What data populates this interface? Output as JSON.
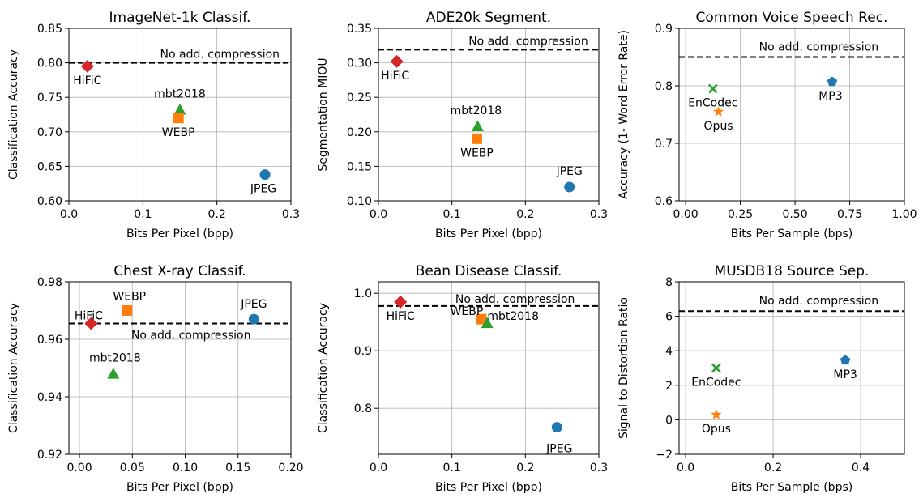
{
  "colors": {
    "blue": "#1f77b4",
    "orange": "#ff7f0e",
    "green": "#2ca02c",
    "red": "#d62728"
  },
  "chart_data": [
    {
      "type": "scatter",
      "title": "ImageNet-1k Classif.",
      "xlabel": "Bits Per Pixel (bpp)",
      "ylabel": "Classification Accuracy",
      "xlim": [
        0.0,
        0.3
      ],
      "ylim": [
        0.6,
        0.85
      ],
      "xticks": [
        0.0,
        0.1,
        0.2,
        0.3
      ],
      "xtick_labels": [
        "0.0",
        "0.1",
        "0.2",
        "0.3"
      ],
      "yticks": [
        0.6,
        0.65,
        0.7,
        0.75,
        0.8,
        0.85
      ],
      "ytick_labels": [
        "0.60",
        "0.65",
        "0.70",
        "0.75",
        "0.80",
        "0.85"
      ],
      "grid": true,
      "reference_line": {
        "value": 0.8,
        "label": "No add. compression"
      },
      "points": [
        {
          "name": "HiFiC",
          "x": 0.025,
          "y": 0.795,
          "marker": "diamond",
          "color": "red"
        },
        {
          "name": "mbt2018",
          "x": 0.15,
          "y": 0.732,
          "marker": "triangle",
          "color": "green"
        },
        {
          "name": "WEBP",
          "x": 0.148,
          "y": 0.72,
          "marker": "square",
          "color": "orange"
        },
        {
          "name": "JPEG",
          "x": 0.265,
          "y": 0.638,
          "marker": "circle",
          "color": "blue"
        }
      ]
    },
    {
      "type": "scatter",
      "title": "ADE20k Segment.",
      "xlabel": "Bits Per Pixel (bpp)",
      "ylabel": "Segmentation MIOU",
      "xlim": [
        0.0,
        0.3
      ],
      "ylim": [
        0.1,
        0.35
      ],
      "xticks": [
        0.0,
        0.1,
        0.2,
        0.3
      ],
      "xtick_labels": [
        "0.0",
        "0.1",
        "0.2",
        "0.3"
      ],
      "yticks": [
        0.1,
        0.15,
        0.2,
        0.25,
        0.3,
        0.35
      ],
      "ytick_labels": [
        "0.10",
        "0.15",
        "0.20",
        "0.25",
        "0.30",
        "0.35"
      ],
      "grid": true,
      "reference_line": {
        "value": 0.319,
        "label": "No add. compression"
      },
      "points": [
        {
          "name": "HiFiC",
          "x": 0.025,
          "y": 0.302,
          "marker": "diamond",
          "color": "red"
        },
        {
          "name": "mbt2018",
          "x": 0.135,
          "y": 0.208,
          "marker": "triangle",
          "color": "green"
        },
        {
          "name": "WEBP",
          "x": 0.134,
          "y": 0.19,
          "marker": "square",
          "color": "orange"
        },
        {
          "name": "JPEG",
          "x": 0.26,
          "y": 0.12,
          "marker": "circle",
          "color": "blue"
        }
      ]
    },
    {
      "type": "scatter",
      "title": "Common Voice Speech Rec.",
      "xlabel": "Bits Per Sample (bps)",
      "ylabel": "Accuracy (1- Word Error Rate)",
      "xlim": [
        -0.03,
        1.0
      ],
      "ylim": [
        0.6,
        0.9
      ],
      "xticks": [
        0.0,
        0.25,
        0.5,
        0.75,
        1.0
      ],
      "xtick_labels": [
        "0.00",
        "0.25",
        "0.50",
        "0.75",
        "1.00"
      ],
      "yticks": [
        0.6,
        0.7,
        0.8,
        0.9
      ],
      "ytick_labels": [
        "0.6",
        "0.7",
        "0.8",
        "0.9"
      ],
      "grid": true,
      "reference_line": {
        "value": 0.85,
        "label": "No add. compression"
      },
      "points": [
        {
          "name": "EnCodec",
          "x": 0.125,
          "y": 0.795,
          "marker": "x",
          "color": "green"
        },
        {
          "name": "Opus",
          "x": 0.15,
          "y": 0.755,
          "marker": "star",
          "color": "orange"
        },
        {
          "name": "MP3",
          "x": 0.67,
          "y": 0.807,
          "marker": "pentagon",
          "color": "blue"
        }
      ]
    },
    {
      "type": "scatter",
      "title": "Chest X-ray Classif.",
      "xlabel": "Bits Per Pixel (bpp)",
      "ylabel": "Classification Accuracy",
      "xlim": [
        -0.01,
        0.2
      ],
      "ylim": [
        0.92,
        0.98
      ],
      "xticks": [
        0.0,
        0.05,
        0.1,
        0.15,
        0.2
      ],
      "xtick_labels": [
        "0.00",
        "0.05",
        "0.10",
        "0.15",
        "0.20"
      ],
      "yticks": [
        0.92,
        0.94,
        0.96,
        0.98
      ],
      "ytick_labels": [
        "0.92",
        "0.94",
        "0.96",
        "0.98"
      ],
      "grid": true,
      "reference_line": {
        "value": 0.9655,
        "label": "No add. compression"
      },
      "points": [
        {
          "name": "HiFiC",
          "x": 0.011,
          "y": 0.9655,
          "marker": "diamond",
          "color": "red"
        },
        {
          "name": "WEBP",
          "x": 0.045,
          "y": 0.97,
          "marker": "square",
          "color": "orange"
        },
        {
          "name": "JPEG",
          "x": 0.165,
          "y": 0.967,
          "marker": "circle",
          "color": "blue"
        },
        {
          "name": "mbt2018",
          "x": 0.032,
          "y": 0.948,
          "marker": "triangle",
          "color": "green"
        }
      ]
    },
    {
      "type": "scatter",
      "title": "Bean Disease Classif.",
      "xlabel": "Bits Per Pixel (bpp)",
      "ylabel": "Classification Accuracy",
      "xlim": [
        0.0,
        0.3
      ],
      "ylim": [
        0.72,
        1.02
      ],
      "xticks": [
        0.0,
        0.1,
        0.2,
        0.3
      ],
      "xtick_labels": [
        "0.0",
        "0.1",
        "0.2",
        "0.3"
      ],
      "yticks": [
        0.8,
        0.9,
        1.0
      ],
      "ytick_labels": [
        "0.8",
        "0.9",
        "1.0"
      ],
      "grid": true,
      "reference_line": {
        "value": 0.978,
        "label": "No add. compression"
      },
      "points": [
        {
          "name": "HiFiC",
          "x": 0.03,
          "y": 0.985,
          "marker": "diamond",
          "color": "red"
        },
        {
          "name": "WEBP",
          "x": 0.14,
          "y": 0.955,
          "marker": "square",
          "color": "orange"
        },
        {
          "name": "mbt2018",
          "x": 0.148,
          "y": 0.948,
          "marker": "triangle",
          "color": "green"
        },
        {
          "name": "JPEG",
          "x": 0.243,
          "y": 0.767,
          "marker": "circle",
          "color": "blue"
        }
      ]
    },
    {
      "type": "scatter",
      "title": "MUSDB18 Source Sep.",
      "xlabel": "Bits Per Sample (bps)",
      "ylabel": "Signal to Distortion Ratio",
      "xlim": [
        -0.015,
        0.5
      ],
      "ylim": [
        -2,
        8
      ],
      "xticks": [
        0.0,
        0.2,
        0.4
      ],
      "xtick_labels": [
        "0.0",
        "0.2",
        "0.4"
      ],
      "yticks": [
        -2,
        0,
        2,
        4,
        6,
        8
      ],
      "ytick_labels": [
        "−2",
        "0",
        "2",
        "4",
        "6",
        "8"
      ],
      "grid": true,
      "reference_line": {
        "value": 6.3,
        "label": "No add. compression"
      },
      "points": [
        {
          "name": "EnCodec",
          "x": 0.07,
          "y": 3.0,
          "marker": "x",
          "color": "green"
        },
        {
          "name": "Opus",
          "x": 0.07,
          "y": 0.3,
          "marker": "star",
          "color": "orange"
        },
        {
          "name": "MP3",
          "x": 0.365,
          "y": 3.45,
          "marker": "pentagon",
          "color": "blue"
        }
      ]
    }
  ]
}
